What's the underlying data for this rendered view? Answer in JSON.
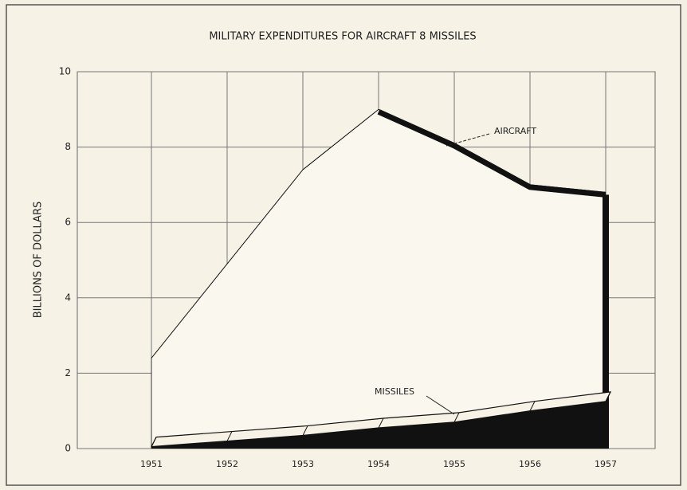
{
  "chart_data": {
    "type": "area",
    "title": "MILITARY EXPENDITURES FOR AIRCRAFT 8 MISSILES",
    "y_label": "BILLIONS OF DOLLARS",
    "categories": [
      "1951",
      "1952",
      "1953",
      "1954",
      "1955",
      "1956",
      "1957"
    ],
    "series": [
      {
        "name": "AIRCRAFT",
        "color": "#111111",
        "values": [
          2.4,
          4.9,
          7.4,
          9.0,
          8.1,
          7.0,
          6.8
        ]
      },
      {
        "name": "MISSILES",
        "color": "#111111",
        "values": [
          0.05,
          0.2,
          0.35,
          0.55,
          0.7,
          1.0,
          1.25
        ]
      }
    ],
    "ylim": [
      0,
      10
    ],
    "yticks": [
      0,
      2,
      4,
      6,
      8,
      10
    ],
    "grid": true
  }
}
